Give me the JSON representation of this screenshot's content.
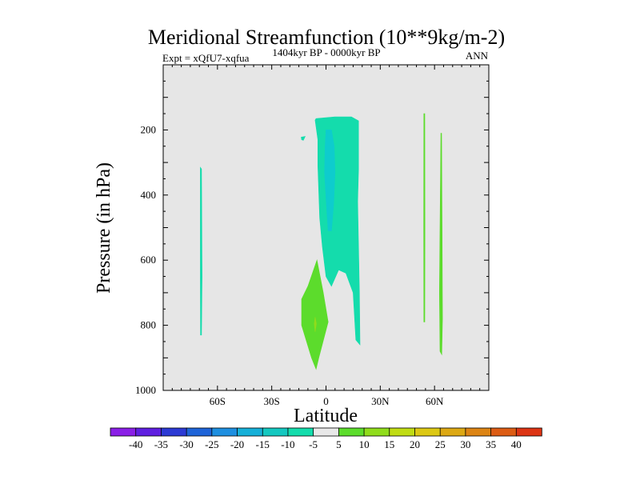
{
  "chart_data": {
    "type": "contour",
    "title": "Meridional Streamfunction (10**9kg/m-2)",
    "subtitle_left": "Expt = xQfU7-xqfua",
    "subtitle_center": "1404kyr BP - 0000kyr BP",
    "subtitle_right": "ANN",
    "xlabel": "Latitude",
    "ylabel": "Pressure (in hPa)",
    "xlim": [
      -90,
      90
    ],
    "ylim": [
      0,
      1000
    ],
    "y_inverted": true,
    "x_ticks": [
      {
        "value": -60,
        "label": "60S"
      },
      {
        "value": -30,
        "label": "30S"
      },
      {
        "value": 0,
        "label": "0"
      },
      {
        "value": 30,
        "label": "30N"
      },
      {
        "value": 60,
        "label": "60N"
      }
    ],
    "y_ticks": [
      {
        "value": 200,
        "label": "200"
      },
      {
        "value": 400,
        "label": "400"
      },
      {
        "value": 600,
        "label": "600"
      },
      {
        "value": 800,
        "label": "800"
      },
      {
        "value": 1000,
        "label": "1000"
      }
    ],
    "background_color": "#e6e6e6",
    "colorbar": {
      "labels": [
        "-40",
        "-35",
        "-30",
        "-25",
        "-20",
        "-15",
        "-10",
        "-5",
        "5",
        "10",
        "15",
        "20",
        "25",
        "30",
        "35",
        "40"
      ],
      "colors": [
        "#8a1fe6",
        "#5f1fe0",
        "#2c3ad4",
        "#1e64d8",
        "#1e8fe0",
        "#16b0d8",
        "#14c8c0",
        "#14dcac",
        "#e8e8e8",
        "#5cdc2c",
        "#90dc1c",
        "#c0dc14",
        "#dcc814",
        "#dca814",
        "#dc8414",
        "#dc5c14",
        "#dc3414"
      ]
    },
    "regions": [
      {
        "name": "region-tropical-negative",
        "level": "-10",
        "color": "#14dcac",
        "polygon": [
          [
            -5.5,
            165
          ],
          [
            5,
            160
          ],
          [
            14,
            160
          ],
          [
            18,
            172
          ],
          [
            18,
            320
          ],
          [
            17.5,
            420
          ],
          [
            18,
            560
          ],
          [
            18.5,
            700
          ],
          [
            18.8,
            860
          ],
          [
            16.5,
            845
          ],
          [
            15,
            700
          ],
          [
            11,
            640
          ],
          [
            7,
            630
          ],
          [
            3,
            680
          ],
          [
            0,
            650
          ],
          [
            -2,
            560
          ],
          [
            -3.5,
            470
          ],
          [
            -4.5,
            310
          ],
          [
            -4.5,
            230
          ],
          [
            -6,
            170
          ]
        ]
      },
      {
        "name": "region-tropical-core",
        "level": "-15",
        "color": "#0ecccd",
        "polygon": [
          [
            0,
            200
          ],
          [
            3,
            200
          ],
          [
            4.5,
            250
          ],
          [
            5,
            330
          ],
          [
            4.2,
            430
          ],
          [
            3,
            510
          ],
          [
            1.2,
            510
          ],
          [
            0.2,
            430
          ],
          [
            -0.8,
            330
          ],
          [
            -0.5,
            250
          ]
        ]
      },
      {
        "name": "region-southern-positive",
        "level": "5",
        "color": "#5cdc2c",
        "polygon": [
          [
            -5,
            600
          ],
          [
            -1.5,
            700
          ],
          [
            1.2,
            790
          ],
          [
            -4,
            900
          ],
          [
            -5.5,
            935
          ],
          [
            -8,
            900
          ],
          [
            -13.5,
            800
          ],
          [
            -13.5,
            720
          ],
          [
            -10,
            680
          ]
        ]
      },
      {
        "name": "region-southern-core",
        "level": "10",
        "color": "#90dc1c",
        "polygon": [
          [
            -6,
            775
          ],
          [
            -5.3,
            795
          ],
          [
            -6,
            820
          ],
          [
            -6.5,
            795
          ]
        ]
      },
      {
        "name": "region-small-negative",
        "level": "-5",
        "color": "#14dcac",
        "polygon": [
          [
            -13.7,
            222
          ],
          [
            -11.5,
            220
          ],
          [
            -12.5,
            232
          ],
          [
            -13.5,
            230
          ]
        ]
      },
      {
        "name": "region-60s-strip",
        "level": "-5",
        "color": "#14dcac",
        "polygon": [
          [
            -69.5,
            315
          ],
          [
            -68.8,
            320
          ],
          [
            -68.5,
            650
          ],
          [
            -68.8,
            830
          ],
          [
            -69.4,
            830
          ],
          [
            -69.5,
            650
          ]
        ]
      },
      {
        "name": "region-55n-strip",
        "level": "5",
        "color": "#5cdc2c",
        "polygon": [
          [
            54.1,
            150
          ],
          [
            54.6,
            150
          ],
          [
            54.7,
            500
          ],
          [
            54.6,
            790
          ],
          [
            54.1,
            790
          ],
          [
            54,
            500
          ]
        ]
      },
      {
        "name": "region-62n-strip",
        "level": "5",
        "color": "#5cdc2c",
        "polygon": [
          [
            63.5,
            210
          ],
          [
            63.9,
            210
          ],
          [
            64.2,
            550
          ],
          [
            64.4,
            780
          ],
          [
            64,
            890
          ],
          [
            63,
            880
          ],
          [
            62.7,
            700
          ],
          [
            63,
            500
          ]
        ]
      }
    ]
  }
}
